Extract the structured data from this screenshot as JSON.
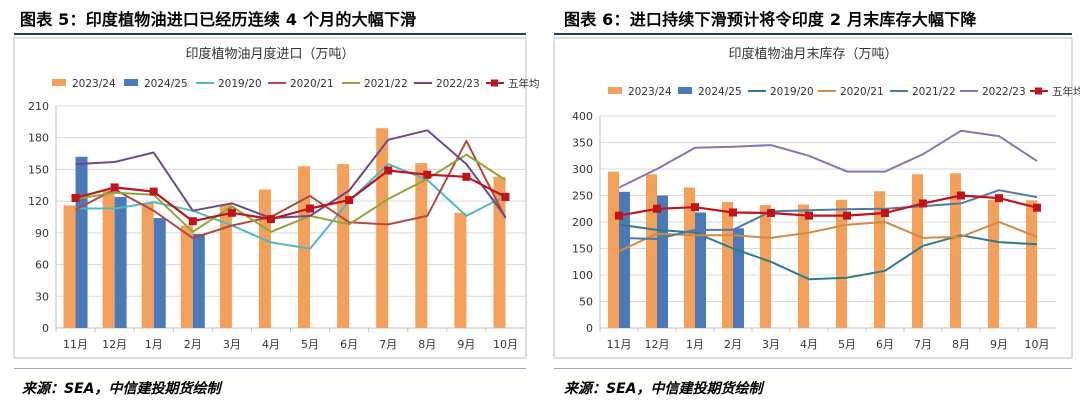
{
  "panels": [
    {
      "figure_title": "图表 5：印度植物油进口已经历连续 4 个月的大幅下滑",
      "source": "来源：SEA，中信建投期货绘制"
    },
    {
      "figure_title": "图表 6：进口持续下滑预计将令印度 2 月末库存大幅下降",
      "source": "来源：SEA，中信建投期货绘制"
    }
  ],
  "chart_data": [
    {
      "type": "bar",
      "title": "印度植物油月度进口（万吨）",
      "categories": [
        "11月",
        "12月",
        "1月",
        "2月",
        "3月",
        "4月",
        "5月",
        "6月",
        "7月",
        "8月",
        "9月",
        "10月"
      ],
      "ylim": [
        0,
        210
      ],
      "yticks": [
        0,
        30,
        60,
        90,
        120,
        150,
        180,
        210
      ],
      "grid": true,
      "legend_position": "top",
      "series": [
        {
          "name": "2023/24",
          "kind": "bar",
          "color": "#f5a05a",
          "values": [
            116,
            130,
            118,
            97,
            117,
            131,
            153,
            155,
            189,
            156,
            109,
            143
          ]
        },
        {
          "name": "2024/25",
          "kind": "bar",
          "color": "#4a7ab8",
          "values": [
            162,
            124,
            104,
            89,
            null,
            null,
            null,
            null,
            null,
            null,
            null,
            null
          ]
        },
        {
          "name": "2019/20",
          "kind": "line",
          "color": "#4fb8c6",
          "values": [
            113,
            113,
            119,
            111,
            97,
            81,
            75,
            120,
            155,
            140,
            106,
            125
          ]
        },
        {
          "name": "2020/21",
          "kind": "line",
          "color": "#b04a42",
          "values": [
            112,
            131,
            111,
            85,
            97,
            105,
            125,
            100,
            98,
            106,
            177,
            104
          ]
        },
        {
          "name": "2021/22",
          "kind": "line",
          "color": "#8fa63a",
          "values": [
            122,
            128,
            126,
            91,
            115,
            91,
            106,
            98,
            122,
            141,
            164,
            140
          ]
        },
        {
          "name": "2022/23",
          "kind": "line",
          "color": "#6a4a8c",
          "values": [
            155,
            157,
            166,
            111,
            118,
            104,
            106,
            130,
            178,
            187,
            155,
            105
          ]
        },
        {
          "name": "五年均值",
          "kind": "line-marker",
          "color": "#c0141a",
          "values": [
            123,
            133,
            129,
            101,
            109,
            103,
            113,
            121,
            149,
            145,
            143,
            124
          ]
        }
      ]
    },
    {
      "type": "bar",
      "title": "印度植物油月末库存（万吨）",
      "categories": [
        "11月",
        "12月",
        "1月",
        "2月",
        "3月",
        "4月",
        "5月",
        "6月",
        "7月",
        "8月",
        "9月",
        "10月"
      ],
      "ylim": [
        0,
        400
      ],
      "yticks": [
        0,
        50,
        100,
        150,
        200,
        250,
        300,
        350,
        400
      ],
      "grid": true,
      "legend_position": "top",
      "series": [
        {
          "name": "2023/24",
          "kind": "bar",
          "color": "#f5a05a",
          "values": [
            295,
            290,
            265,
            238,
            232,
            233,
            242,
            258,
            290,
            292,
            242,
            241
          ]
        },
        {
          "name": "2024/25",
          "kind": "bar",
          "color": "#4a7ab8",
          "values": [
            257,
            250,
            218,
            188,
            null,
            null,
            null,
            null,
            null,
            null,
            null,
            null
          ]
        },
        {
          "name": "2019/20",
          "kind": "line",
          "color": "#2e7b8c",
          "values": [
            195,
            185,
            180,
            150,
            125,
            92,
            95,
            108,
            155,
            175,
            162,
            158
          ]
        },
        {
          "name": "2020/21",
          "kind": "line",
          "color": "#d08a45",
          "values": [
            145,
            178,
            175,
            175,
            170,
            180,
            195,
            200,
            170,
            172,
            200,
            172
          ]
        },
        {
          "name": "2021/22",
          "kind": "line",
          "color": "#4f7aa8",
          "values": [
            170,
            168,
            185,
            185,
            220,
            222,
            224,
            225,
            230,
            235,
            260,
            247
          ]
        },
        {
          "name": "2022/23",
          "kind": "line",
          "color": "#8a73b8",
          "values": [
            265,
            300,
            340,
            342,
            345,
            325,
            295,
            295,
            328,
            372,
            362,
            315
          ]
        },
        {
          "name": "五年均值",
          "kind": "line-marker",
          "color": "#c0141a",
          "values": [
            212,
            225,
            228,
            218,
            217,
            212,
            212,
            217,
            235,
            250,
            245,
            227
          ]
        }
      ]
    }
  ]
}
